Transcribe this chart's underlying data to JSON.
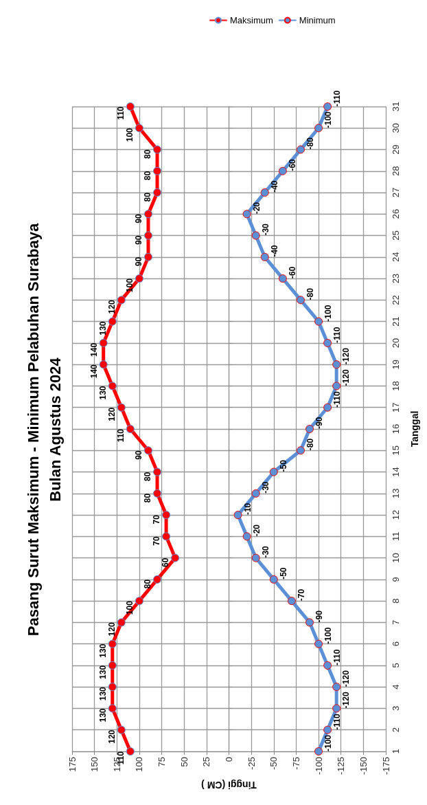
{
  "chart_data": {
    "type": "line",
    "orientation": "horizontal",
    "title": "Pasang Surut Maksimum - Minimum Pelabuhan Surabaya",
    "subtitle": "Bulan Agustus 2024",
    "xlabel": "Tinggi (CM )",
    "ylabel": "Tanggal",
    "categories": [
      "31",
      "30",
      "29",
      "28",
      "27",
      "26",
      "25",
      "24",
      "23",
      "22",
      "21",
      "20",
      "19",
      "18",
      "17",
      "16",
      "15",
      "14",
      "13",
      "12",
      "11",
      "10",
      "9",
      "8",
      "7",
      "6",
      "5",
      "4",
      "3",
      "2",
      "1"
    ],
    "series": [
      {
        "name": "Maksimum",
        "color": "#ff0000",
        "values": [
          110,
          100,
          80,
          80,
          80,
          90,
          90,
          90,
          100,
          120,
          130,
          140,
          140,
          130,
          120,
          110,
          90,
          80,
          80,
          70,
          70,
          60,
          80,
          100,
          120,
          130,
          130,
          130,
          130,
          120,
          110
        ]
      },
      {
        "name": "Minimum",
        "color": "#5b8fd6",
        "values": [
          -110,
          -100,
          -80,
          -60,
          -40,
          -20,
          -30,
          -40,
          -60,
          -80,
          -100,
          -110,
          -120,
          -120,
          -110,
          -90,
          -80,
          -50,
          -30,
          -10,
          -20,
          -30,
          -50,
          -70,
          -90,
          -100,
          -110,
          -120,
          -120,
          -110,
          -100
        ]
      }
    ],
    "xlim": [
      175,
      -175
    ],
    "xticks": [
      175,
      150,
      125,
      100,
      75,
      50,
      25,
      0,
      -25,
      -50,
      -75,
      -100,
      -125,
      -150,
      -175
    ],
    "grid": true,
    "legend": "top",
    "marker": "circle",
    "line_style": "solid",
    "data_labels": true
  }
}
